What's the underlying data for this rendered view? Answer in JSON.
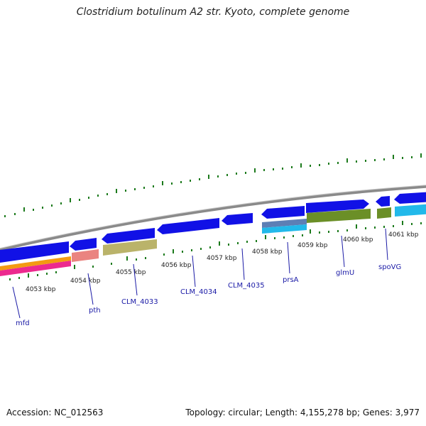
{
  "title": "Clostridium botulinum A2 str. Kyoto, complete genome",
  "footer": {
    "accession": "Accession: NC_012563",
    "summary": "Topology: circular; Length: 4,155,278 bp; Genes: 3,977"
  },
  "kbp_labels": [
    {
      "id": "4053",
      "text": "4053 kbp"
    },
    {
      "id": "4054",
      "text": "4054 kbp"
    },
    {
      "id": "4055",
      "text": "4055 kbp"
    },
    {
      "id": "4056",
      "text": "4056 kbp"
    },
    {
      "id": "4057",
      "text": "4057 kbp"
    },
    {
      "id": "4058",
      "text": "4058 kbp"
    },
    {
      "id": "4059",
      "text": "4059 kbp"
    },
    {
      "id": "4060",
      "text": "4060 kbp"
    },
    {
      "id": "4061",
      "text": "4061 kbp"
    }
  ],
  "genes": [
    {
      "id": "mfd",
      "text": "mfd"
    },
    {
      "id": "pth",
      "text": "pth"
    },
    {
      "id": "clm4033",
      "text": "CLM_4033"
    },
    {
      "id": "clm4034",
      "text": "CLM_4034"
    },
    {
      "id": "clm4035",
      "text": "CLM_4035"
    },
    {
      "id": "prsa",
      "text": "prsA"
    },
    {
      "id": "glmu",
      "text": "glmU"
    },
    {
      "id": "spovg",
      "text": "spoVG"
    }
  ],
  "colors": {
    "backbone": "#8a8a8a",
    "gene_blue": "#1111e6",
    "tick_green": "#1c7a1c",
    "orange": "#f39a12",
    "pink": "#ec2a8e",
    "salmon": "#ea8480",
    "khaki": "#bab36a",
    "olive": "#6b8f27",
    "cyan": "#22b9ea",
    "steel": "#5d7fb5",
    "label_blue": "#1a1aa6"
  }
}
